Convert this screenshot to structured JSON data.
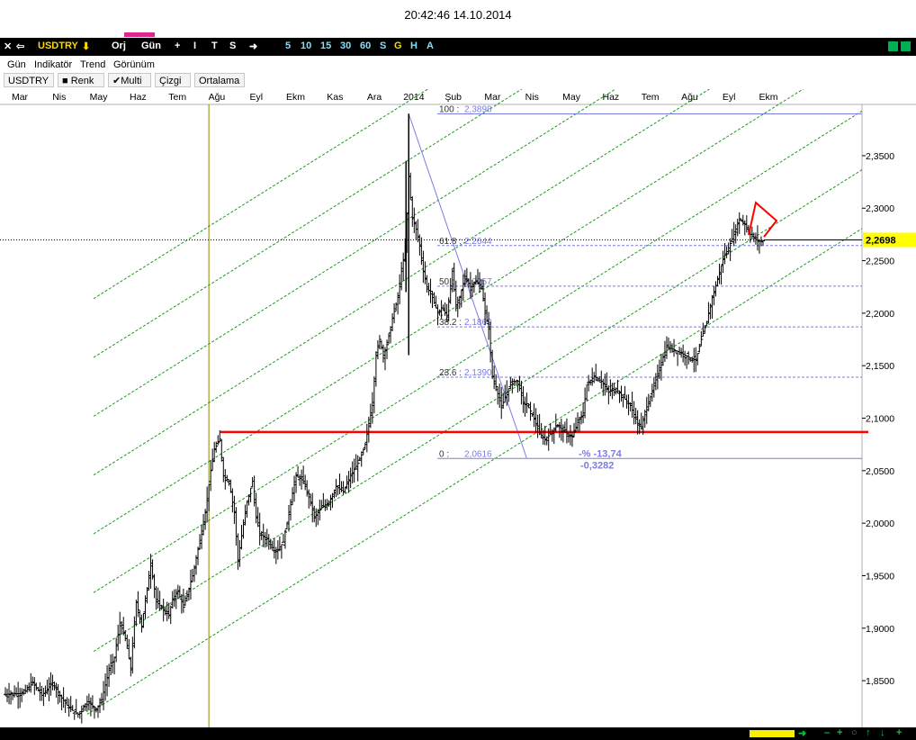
{
  "header": {
    "clock": "20:42:46 14.10.2014"
  },
  "toolbar": {
    "symbol": "USDTRY",
    "orj": "Orj",
    "period": "Gün",
    "tools": [
      "+",
      "I",
      "T",
      "S"
    ],
    "intervals": [
      "5",
      "10",
      "15",
      "30",
      "60",
      "S",
      "G",
      "H",
      "A"
    ]
  },
  "menu": [
    "Gün",
    "Indikatör",
    "Trend",
    "Görünüm"
  ],
  "tabs": {
    "symbol": "USDTRY",
    "renk": "Renk",
    "multi": "Multi",
    "cizgi": "Çizgi",
    "ortalama": "Ortalama"
  },
  "colors": {
    "candles": "#000000",
    "channel": "#1a9a1a",
    "support": "#ff0000",
    "fibo": "#7b7be6",
    "current_price_bg": "#ffff00",
    "vertical_marker": "#8a8a00"
  },
  "chart_data": {
    "type": "candlestick",
    "symbol": "USDTRY",
    "interval": "daily",
    "ylim": [
      1.8055,
      2.4031
    ],
    "x_ticks": [
      "Mar",
      "Nis",
      "May",
      "Haz",
      "Tem",
      "Ağu",
      "Eyl",
      "Ekm",
      "Kas",
      "Ara",
      "2014",
      "Şub",
      "Mar",
      "Nis",
      "May",
      "Haz",
      "Tem",
      "Ağu",
      "Eyl",
      "Ekm"
    ],
    "y_ticks": [
      "2,3500",
      "2,3000",
      "2,2500",
      "2,2000",
      "2,1500",
      "2,1000",
      "2,0500",
      "2,0000",
      "1,9500",
      "1,9000",
      "1,8500"
    ],
    "current_price": {
      "value": 2.2698,
      "label": "2,2698"
    },
    "support_level": 2.0868,
    "fibonacci": [
      {
        "level": "100",
        "value": 2.3898,
        "text": "2,3898"
      },
      {
        "level": "61.8",
        "value": 2.2644,
        "text": "2,2644"
      },
      {
        "level": "50",
        "value": 2.2257,
        "text": "2,2257"
      },
      {
        "level": "38.2",
        "value": 2.1869,
        "text": "2,1869"
      },
      {
        "level": "23.6",
        "value": 2.139,
        "text": "2,1390"
      },
      {
        "level": "0",
        "value": 2.0616,
        "text": "2,0616"
      }
    ],
    "fibo_label_texts": [
      "100 :",
      "61.8 :",
      "50 :",
      "38.2 :",
      "23.6 :",
      "0 :"
    ],
    "annotation": {
      "percent": "-% -13,74",
      "change": "-0,3282"
    },
    "price_path": [
      [
        0,
        1.837
      ],
      [
        1.0,
        1.838
      ],
      [
        1.5,
        1.848
      ],
      [
        2.0,
        1.836
      ],
      [
        2.6,
        1.848
      ],
      [
        3.0,
        1.836
      ],
      [
        3.5,
        1.824
      ],
      [
        4.0,
        1.818
      ],
      [
        4.5,
        1.83
      ],
      [
        5.0,
        1.823
      ],
      [
        5.3,
        1.832
      ],
      [
        5.7,
        1.86
      ],
      [
        6.0,
        1.872
      ],
      [
        6.3,
        1.905
      ],
      [
        6.6,
        1.89
      ],
      [
        6.9,
        1.862
      ],
      [
        7.2,
        1.925
      ],
      [
        7.5,
        1.902
      ],
      [
        7.8,
        1.938
      ],
      [
        8.0,
        1.962
      ],
      [
        8.3,
        1.925
      ],
      [
        8.7,
        1.918
      ],
      [
        9.0,
        1.912
      ],
      [
        9.2,
        1.928
      ],
      [
        9.5,
        1.935
      ],
      [
        9.8,
        1.92
      ],
      [
        10.0,
        1.932
      ],
      [
        10.3,
        1.95
      ],
      [
        10.6,
        1.975
      ],
      [
        11.0,
        2.01
      ],
      [
        11.3,
        2.05
      ],
      [
        11.5,
        2.07
      ],
      [
        11.8,
        2.08
      ],
      [
        12.0,
        2.045
      ],
      [
        12.3,
        2.04
      ],
      [
        12.6,
        2.01
      ],
      [
        12.8,
        1.965
      ],
      [
        13.0,
        1.988
      ],
      [
        13.3,
        2.02
      ],
      [
        13.6,
        2.04
      ],
      [
        13.8,
        2.005
      ],
      [
        14.0,
        1.99
      ],
      [
        14.4,
        1.985
      ],
      [
        14.8,
        1.974
      ],
      [
        15.0,
        1.975
      ],
      [
        15.3,
        1.982
      ],
      [
        15.7,
        2.02
      ],
      [
        16.0,
        2.045
      ],
      [
        16.4,
        2.04
      ],
      [
        16.8,
        2.02
      ],
      [
        17.0,
        2.005
      ],
      [
        17.4,
        2.015
      ],
      [
        17.8,
        2.02
      ],
      [
        18.2,
        2.035
      ],
      [
        18.6,
        2.03
      ],
      [
        19.0,
        2.045
      ],
      [
        19.5,
        2.06
      ],
      [
        19.8,
        2.075
      ],
      [
        20.0,
        2.095
      ],
      [
        20.2,
        2.115
      ],
      [
        20.4,
        2.16
      ],
      [
        20.6,
        2.175
      ],
      [
        20.8,
        2.16
      ],
      [
        21.0,
        2.17
      ],
      [
        21.3,
        2.195
      ],
      [
        21.6,
        2.215
      ],
      [
        21.8,
        2.24
      ],
      [
        22.0,
        2.26
      ],
      [
        22.2,
        2.33
      ],
      [
        22.4,
        2.29
      ],
      [
        22.6,
        2.28
      ],
      [
        22.8,
        2.265
      ],
      [
        23.0,
        2.24
      ],
      [
        23.2,
        2.225
      ],
      [
        23.5,
        2.215
      ],
      [
        23.8,
        2.2
      ],
      [
        24.0,
        2.205
      ],
      [
        24.3,
        2.198
      ],
      [
        24.6,
        2.24
      ],
      [
        24.8,
        2.205
      ],
      [
        25.0,
        2.215
      ],
      [
        25.3,
        2.235
      ],
      [
        25.6,
        2.225
      ],
      [
        25.9,
        2.23
      ],
      [
        26.2,
        2.225
      ],
      [
        26.4,
        2.2
      ],
      [
        26.6,
        2.185
      ],
      [
        26.8,
        2.14
      ],
      [
        27.0,
        2.13
      ],
      [
        27.3,
        2.11
      ],
      [
        27.6,
        2.125
      ],
      [
        27.9,
        2.135
      ],
      [
        28.2,
        2.135
      ],
      [
        28.5,
        2.115
      ],
      [
        28.8,
        2.11
      ],
      [
        29.1,
        2.1
      ],
      [
        29.4,
        2.085
      ],
      [
        29.7,
        2.08
      ],
      [
        30.0,
        2.085
      ],
      [
        30.3,
        2.093
      ],
      [
        30.6,
        2.09
      ],
      [
        30.9,
        2.085
      ],
      [
        31.2,
        2.082
      ],
      [
        31.5,
        2.096
      ],
      [
        31.8,
        2.105
      ],
      [
        32.0,
        2.132
      ],
      [
        32.4,
        2.14
      ],
      [
        32.8,
        2.135
      ],
      [
        33.2,
        2.125
      ],
      [
        33.6,
        2.128
      ],
      [
        34.0,
        2.12
      ],
      [
        34.4,
        2.112
      ],
      [
        34.8,
        2.095
      ],
      [
        35.0,
        2.09
      ],
      [
        35.2,
        2.106
      ],
      [
        35.6,
        2.125
      ],
      [
        36.0,
        2.148
      ],
      [
        36.4,
        2.168
      ],
      [
        36.8,
        2.165
      ],
      [
        37.2,
        2.162
      ],
      [
        37.6,
        2.158
      ],
      [
        38.0,
        2.155
      ],
      [
        38.3,
        2.175
      ],
      [
        38.6,
        2.192
      ],
      [
        38.9,
        2.215
      ],
      [
        39.2,
        2.232
      ],
      [
        39.5,
        2.252
      ],
      [
        39.8,
        2.262
      ],
      [
        40.1,
        2.275
      ],
      [
        40.4,
        2.29
      ],
      [
        40.7,
        2.285
      ],
      [
        41.0,
        2.275
      ],
      [
        41.3,
        2.27
      ],
      [
        41.6,
        2.268
      ],
      [
        41.8,
        2.2698
      ]
    ],
    "fibo_swing": {
      "high_index": 22.2,
      "low_index": 28.7
    }
  }
}
